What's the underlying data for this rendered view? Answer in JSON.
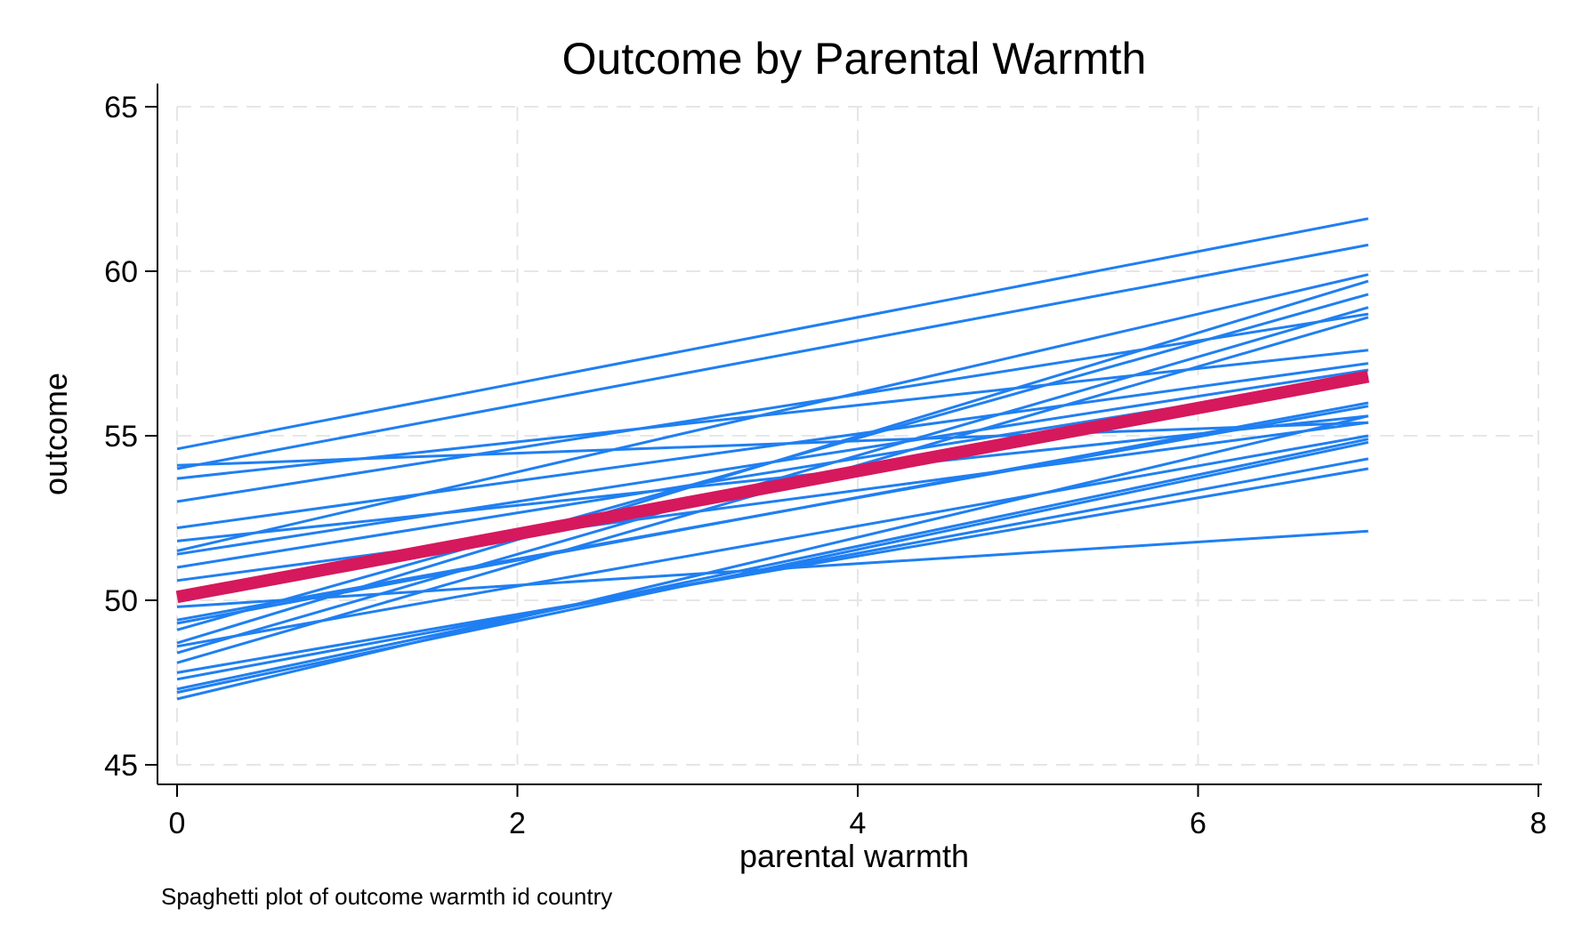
{
  "chart_data": {
    "type": "line",
    "title": "Outcome by Parental Warmth",
    "xlabel": "parental warmth",
    "ylabel": "outcome",
    "note": "Spaghetti plot of outcome warmth id country",
    "xlim": [
      0,
      8
    ],
    "ylim": [
      45,
      65
    ],
    "xticks": [
      0,
      2,
      4,
      6,
      8
    ],
    "yticks": [
      45,
      50,
      55,
      60,
      65
    ],
    "grid": true,
    "legend": "none",
    "colors": {
      "individual": "#1f7ff2",
      "average": "#d6185d",
      "grid": "#e6e6e6",
      "axis": "#000000"
    },
    "average_line": {
      "x": [
        0,
        7
      ],
      "y": [
        50.1,
        56.8
      ]
    },
    "series": [
      {
        "x": [
          0,
          7
        ],
        "y": [
          54.6,
          61.6
        ]
      },
      {
        "x": [
          0,
          7
        ],
        "y": [
          54.0,
          60.8
        ]
      },
      {
        "x": [
          0,
          7
        ],
        "y": [
          54.1,
          55.4
        ]
      },
      {
        "x": [
          0,
          7
        ],
        "y": [
          53.7,
          57.6
        ]
      },
      {
        "x": [
          0,
          7
        ],
        "y": [
          53.0,
          58.7
        ]
      },
      {
        "x": [
          0,
          7
        ],
        "y": [
          52.2,
          57.2
        ]
      },
      {
        "x": [
          0,
          7
        ],
        "y": [
          51.8,
          55.6
        ]
      },
      {
        "x": [
          0,
          7
        ],
        "y": [
          51.5,
          59.9
        ]
      },
      {
        "x": [
          0,
          7
        ],
        "y": [
          51.4,
          57.0
        ]
      },
      {
        "x": [
          0,
          7
        ],
        "y": [
          51.0,
          56.8
        ]
      },
      {
        "x": [
          0,
          7
        ],
        "y": [
          50.6,
          55.4
        ]
      },
      {
        "x": [
          0,
          7
        ],
        "y": [
          49.4,
          55.9
        ]
      },
      {
        "x": [
          0,
          7
        ],
        "y": [
          49.3,
          56.0
        ]
      },
      {
        "x": [
          0,
          7
        ],
        "y": [
          49.1,
          59.3
        ]
      },
      {
        "x": [
          0,
          7
        ],
        "y": [
          48.7,
          59.7
        ]
      },
      {
        "x": [
          0,
          7
        ],
        "y": [
          48.6,
          55.0
        ]
      },
      {
        "x": [
          0,
          7
        ],
        "y": [
          48.4,
          58.9
        ]
      },
      {
        "x": [
          0,
          7
        ],
        "y": [
          48.1,
          58.6
        ]
      },
      {
        "x": [
          0,
          7
        ],
        "y": [
          47.8,
          54.0
        ]
      },
      {
        "x": [
          0,
          7
        ],
        "y": [
          47.6,
          54.3
        ]
      },
      {
        "x": [
          0,
          7
        ],
        "y": [
          47.3,
          54.9
        ]
      },
      {
        "x": [
          0,
          7
        ],
        "y": [
          47.2,
          54.8
        ]
      },
      {
        "x": [
          0,
          7
        ],
        "y": [
          47.0,
          55.6
        ]
      },
      {
        "x": [
          0,
          7
        ],
        "y": [
          49.8,
          52.1
        ]
      }
    ]
  }
}
